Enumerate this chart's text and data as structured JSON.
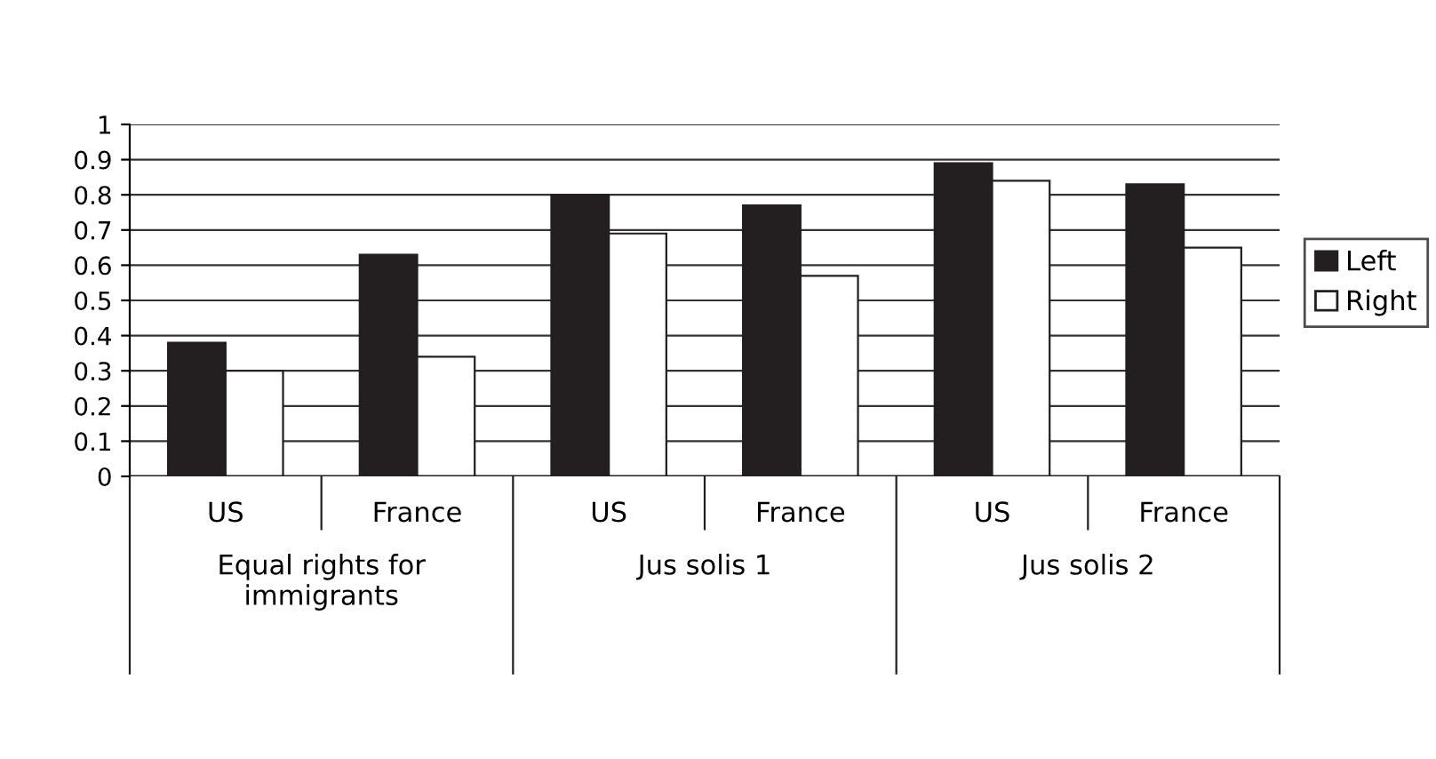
{
  "chart_data": {
    "type": "bar",
    "categories": [
      "US",
      "France",
      "US",
      "France",
      "US",
      "France"
    ],
    "series": [
      {
        "name": "Left",
        "color": "#231f20",
        "values": [
          0.38,
          0.63,
          0.8,
          0.77,
          0.89,
          0.83
        ]
      },
      {
        "name": "Right",
        "color": "#ffffff",
        "values": [
          0.3,
          0.34,
          0.69,
          0.57,
          0.84,
          0.65
        ]
      }
    ],
    "annotations": [
      "Equal rights for\nimmigrants",
      "Jus solis 1",
      "Jus solis 2"
    ],
    "ylim": [
      0,
      1
    ],
    "yticks": [
      0,
      0.1,
      0.2,
      0.3,
      0.4,
      0.5,
      0.6,
      0.7,
      0.8,
      0.9,
      1
    ],
    "grid": "y",
    "legend": "right"
  }
}
